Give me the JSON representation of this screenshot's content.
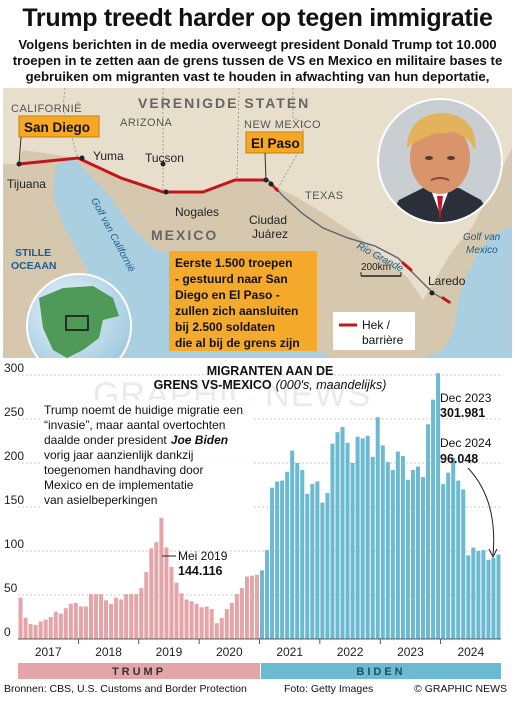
{
  "title": "Trump treedt harder op tegen immigratie",
  "subtitle": "Volgens berichten in de media overweegt president Donald Trump tot 10.000 troepen in te zetten aan de grens tussen de VS en Mexico en militaire bases te gebruiken om migranten vast te houden in afwachting van hun deportatie,",
  "map": {
    "labels": {
      "california": "CALIFORNIË",
      "arizona": "ARIZONA",
      "usa": "VERENIGDE STATEN",
      "new_mexico": "NEW MEXICO",
      "texas": "TEXAS",
      "mexico": "MEXICO",
      "pacific": "STILLE OCEAAN",
      "gulf_california": "Golf van Californië",
      "gulf_mexico": "Golf van Mexico",
      "rio_grande": "Rio Grande"
    },
    "cities": {
      "san_diego": "San Diego",
      "tijuana": "Tijuana",
      "yuma": "Yuma",
      "tucson": "Tucson",
      "nogales": "Nogales",
      "el_paso": "El Paso",
      "ciudad_juarez_1": "Ciudad",
      "ciudad_juarez_2": "Juárez",
      "laredo": "Laredo"
    },
    "scale": "200km",
    "callout": [
      "Eerste 1.500 troepen",
      "- gestuurd naar San",
      "Diego en El Paso -",
      "zullen zich aansluiten",
      "bij 2.500 soldaten",
      "die al bij de grens zijn"
    ],
    "legend": [
      "Hek /",
      "barrière"
    ]
  },
  "chart_data": {
    "type": "bar",
    "title": "MIGRANTEN AAN DE GRENS VS-MEXICO",
    "title_line1": "MIGRANTEN AAN DE",
    "title_line2": "GRENS VS-MEXICO",
    "title_unit": "(000's, maandelijks)",
    "ylim": [
      0,
      300
    ],
    "yticks": [
      "0",
      "50",
      "100",
      "150",
      "200",
      "250",
      "300"
    ],
    "xticks": [
      "2017",
      "2018",
      "2019",
      "2020",
      "2021",
      "2022",
      "2023",
      "2024"
    ],
    "start": "2017-01",
    "values": [
      47,
      24,
      17,
      16,
      20,
      22,
      25,
      31,
      29,
      35,
      40,
      41,
      37,
      37,
      51,
      51,
      51,
      44,
      40,
      47,
      45,
      51,
      51,
      51,
      58,
      76,
      103,
      110,
      144,
      104,
      82,
      64,
      52,
      45,
      43,
      40,
      36,
      37,
      34,
      18,
      24,
      34,
      41,
      51,
      58,
      71,
      72,
      73,
      78,
      101,
      172,
      179,
      180,
      190,
      214,
      200,
      192,
      165,
      176,
      179,
      155,
      166,
      222,
      235,
      241,
      223,
      200,
      230,
      228,
      231,
      207,
      252,
      220,
      201,
      192,
      213,
      208,
      181,
      192,
      196,
      184,
      244,
      272,
      302,
      176,
      189,
      206,
      180,
      170,
      95,
      104,
      100,
      101,
      90,
      92,
      96
    ],
    "series": [
      {
        "name": "TRUMP",
        "color": "#e4a5a9",
        "range": [
          "2017-01",
          "2020-12"
        ]
      },
      {
        "name": "BIDEN",
        "color": "#6cb9d2",
        "range": [
          "2021-01",
          "2024-12"
        ]
      }
    ],
    "annotations": {
      "intro": [
        "Trump noemt de huidige migratie een",
        "“invasie”, maar aantal overtochten",
        "daalde onder president",
        "Joe Biden",
        "vorig jaar aanzienlijk dankzij",
        "toegenomen handhaving door",
        "Mexico en de implementatie",
        "van asielbeperkingen"
      ],
      "mei2019_label": "Mei 2019",
      "mei2019_value": "144.116",
      "dec2023_label": "Dec 2023",
      "dec2023_value": "301.981",
      "dec2024_label": "Dec 2024",
      "dec2024_value": "96.048"
    },
    "watermark": "GRAPHIC NEWS"
  },
  "footer": {
    "sources": "Bronnen: CBS, U.S. Customs and Border Protection",
    "photo": "Foto: Getty Images",
    "brand": "© GRAPHIC NEWS"
  },
  "colors": {
    "trump": "#e4a5a9",
    "biden": "#6cb9d2",
    "border_line": "#c3161c",
    "callout": "#f7a823",
    "map_land_us": "#e5dcca",
    "map_land_mx": "#d4c6ad",
    "map_water": "#a9cfe1"
  }
}
